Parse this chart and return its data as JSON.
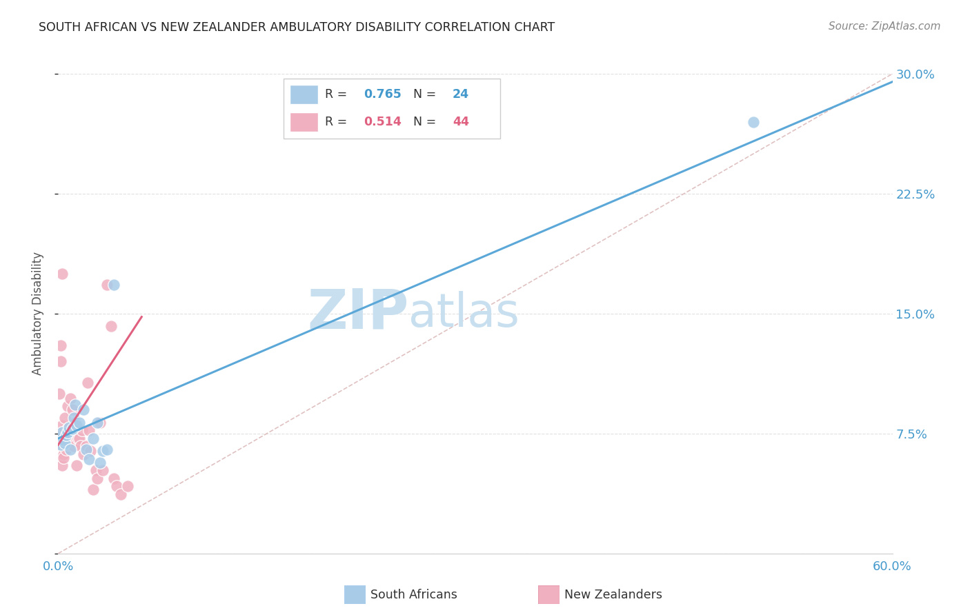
{
  "title": "SOUTH AFRICAN VS NEW ZEALANDER AMBULATORY DISABILITY CORRELATION CHART",
  "source": "Source: ZipAtlas.com",
  "ylabel": "Ambulatory Disability",
  "xlim": [
    0.0,
    0.6
  ],
  "ylim": [
    0.0,
    0.3
  ],
  "xticks": [
    0.0,
    0.1,
    0.2,
    0.3,
    0.4,
    0.5,
    0.6
  ],
  "xticklabels": [
    "0.0%",
    "",
    "",
    "",
    "",
    "",
    "60.0%"
  ],
  "yticks": [
    0.075,
    0.15,
    0.225,
    0.3
  ],
  "yticklabels": [
    "7.5%",
    "15.0%",
    "22.5%",
    "30.0%"
  ],
  "south_africans": {
    "R": 0.765,
    "N": 24,
    "dot_color": "#a8cce8",
    "line_color": "#5ba8d8",
    "x": [
      0.001,
      0.002,
      0.003,
      0.004,
      0.005,
      0.006,
      0.007,
      0.008,
      0.009,
      0.01,
      0.011,
      0.012,
      0.013,
      0.015,
      0.018,
      0.02,
      0.022,
      0.025,
      0.028,
      0.03,
      0.032,
      0.035,
      0.04,
      0.5
    ],
    "y": [
      0.072,
      0.068,
      0.076,
      0.071,
      0.069,
      0.074,
      0.076,
      0.079,
      0.065,
      0.078,
      0.085,
      0.093,
      0.08,
      0.082,
      0.09,
      0.065,
      0.059,
      0.072,
      0.082,
      0.057,
      0.064,
      0.065,
      0.168,
      0.27
    ],
    "reg_line_x": [
      0.0,
      0.6
    ],
    "reg_line_y": [
      0.072,
      0.295
    ]
  },
  "new_zealanders": {
    "R": 0.514,
    "N": 44,
    "dot_color": "#f0b0c0",
    "line_color": "#e06080",
    "x": [
      0.001,
      0.001,
      0.002,
      0.002,
      0.003,
      0.003,
      0.004,
      0.004,
      0.005,
      0.005,
      0.006,
      0.007,
      0.007,
      0.008,
      0.008,
      0.009,
      0.01,
      0.01,
      0.011,
      0.012,
      0.013,
      0.014,
      0.015,
      0.016,
      0.017,
      0.018,
      0.02,
      0.021,
      0.022,
      0.023,
      0.025,
      0.027,
      0.028,
      0.03,
      0.032,
      0.035,
      0.038,
      0.04,
      0.042,
      0.045,
      0.05,
      0.002,
      0.003,
      0.001
    ],
    "y": [
      0.068,
      0.075,
      0.06,
      0.12,
      0.055,
      0.08,
      0.062,
      0.06,
      0.085,
      0.072,
      0.065,
      0.092,
      0.078,
      0.076,
      0.068,
      0.097,
      0.07,
      0.09,
      0.067,
      0.082,
      0.055,
      0.072,
      0.072,
      0.067,
      0.077,
      0.062,
      0.067,
      0.107,
      0.077,
      0.064,
      0.04,
      0.052,
      0.047,
      0.082,
      0.052,
      0.168,
      0.142,
      0.047,
      0.042,
      0.037,
      0.042,
      0.13,
      0.175,
      0.1
    ],
    "reg_line_x": [
      0.0,
      0.06
    ],
    "reg_line_y": [
      0.068,
      0.148
    ]
  },
  "diag_line_color": "#ddbbbb",
  "background_color": "#ffffff",
  "grid_color": "#e0e0e0",
  "watermark_zip_color": "#c8dff0",
  "watermark_atlas_color": "#c8dff0"
}
